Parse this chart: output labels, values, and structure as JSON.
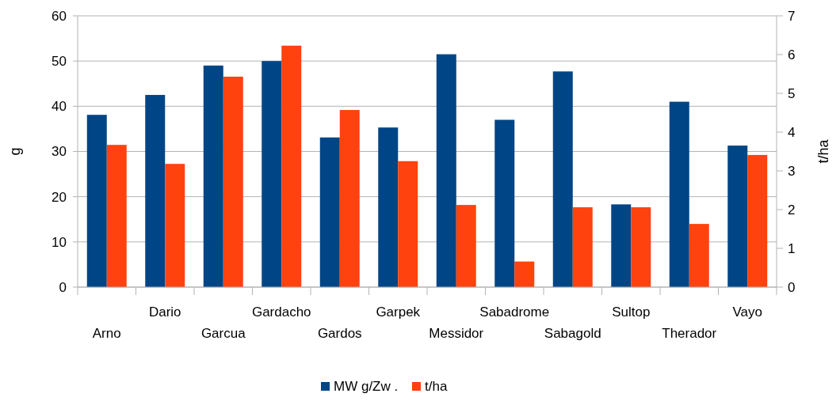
{
  "chart_data": {
    "type": "bar",
    "categories": [
      "Arno",
      "Dario",
      "Garcua",
      "Gardacho",
      "Gardos",
      "Garpek",
      "Messidor",
      "Sabadrome",
      "Sabagold",
      "Sultop",
      "Therador",
      "Vayo"
    ],
    "series": [
      {
        "name": "MW g/Zw .",
        "color": "#004586",
        "values": [
          38.1,
          42.5,
          49.0,
          50.0,
          33.1,
          35.3,
          51.5,
          37.0,
          47.7,
          18.3,
          41.0,
          31.3
        ]
      },
      {
        "name": "t/ha",
        "color": "#ff420e",
        "axis": "y2",
        "values": [
          3.67,
          3.18,
          5.43,
          6.23,
          4.57,
          3.25,
          2.12,
          0.66,
          2.06,
          2.06,
          1.63,
          3.41
        ]
      }
    ],
    "ylabel": "g",
    "y2label": "t/ha",
    "ylim": [
      0,
      60
    ],
    "yticks": [
      0,
      10,
      20,
      30,
      40,
      50,
      60
    ],
    "y2lim": [
      0,
      7
    ],
    "y2ticks": [
      0,
      1,
      2,
      3,
      4,
      5,
      6,
      7
    ],
    "grid": "y",
    "legend": "bottom"
  }
}
